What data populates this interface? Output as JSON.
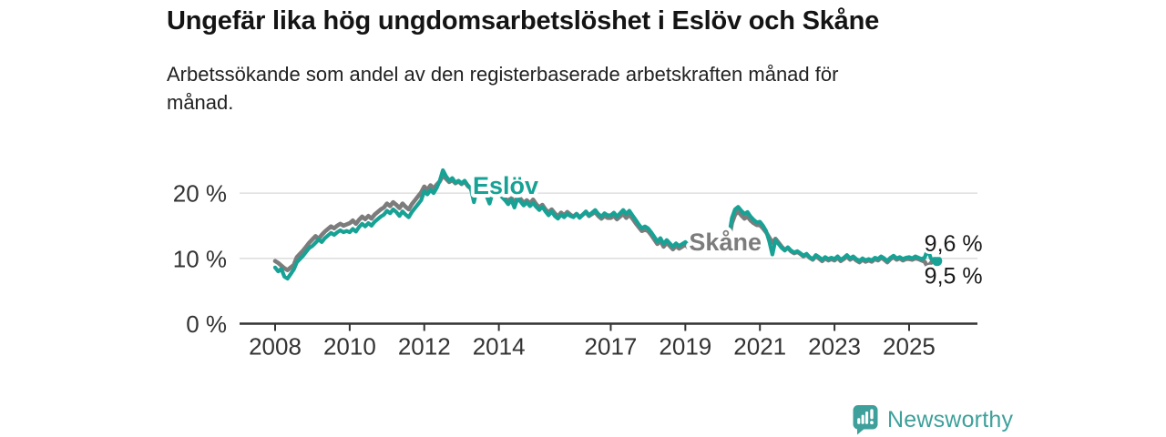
{
  "header": {
    "title": "Ungefär lika hög ungdomsarbetslöshet i Eslöv och Skåne",
    "subtitle_line1": "Arbetssökande som andel av den registerbaserade arbetskraften månad för",
    "subtitle_line2": "månad."
  },
  "branding": {
    "name": "Newsworthy",
    "color": "#3EA09B"
  },
  "chart_data": {
    "type": "line",
    "title": "Ungefär lika hög ungdomsarbetslöshet i Eslöv och Skåne",
    "subtitle": "Arbetssökande som andel av den registerbaserade arbetskraften månad för månad.",
    "unit": "percent",
    "grid": "horizontal",
    "x_start_year": 2008,
    "x_interval": "monthly",
    "x_ticks": [
      2008,
      2010,
      2012,
      2014,
      2017,
      2019,
      2021,
      2023,
      2025
    ],
    "x_tick_labels": [
      "2008",
      "2010",
      "2012",
      "2014",
      "2017",
      "2019",
      "2021",
      "2023",
      "2025"
    ],
    "y_ticks": [
      0,
      10,
      20
    ],
    "y_tick_labels": [
      "0 %",
      "10 %",
      "20 %"
    ],
    "ylim": [
      0,
      25
    ],
    "colors": {
      "grid": "#d9d9d9",
      "axis": "#333333",
      "tick_text": "#333333",
      "value_text": "#1a1a1a"
    },
    "series": [
      {
        "name": "Skåne",
        "color": "#7C7C7C",
        "end_label": "9,5 %",
        "end_label_position": "below",
        "end_dot": false,
        "values": [
          9.6,
          9.3,
          8.9,
          8.5,
          8.2,
          8.6,
          9.0,
          10.2,
          10.7,
          11.2,
          11.8,
          12.4,
          12.9,
          13.4,
          13.0,
          13.6,
          14.1,
          14.5,
          14.9,
          14.6,
          15.0,
          15.3,
          15.0,
          15.2,
          15.4,
          15.8,
          15.3,
          15.9,
          16.4,
          16.0,
          16.5,
          16.1,
          16.7,
          17.1,
          17.5,
          17.8,
          18.4,
          18.0,
          18.6,
          18.2,
          17.7,
          18.4,
          17.9,
          17.5,
          18.3,
          18.9,
          19.5,
          20.1,
          21.0,
          20.5,
          21.2,
          20.7,
          21.3,
          21.8,
          22.7,
          22.2,
          21.7,
          22.0,
          21.5,
          21.8,
          21.4,
          21.8,
          21.1,
          20.7,
          19.3,
          20.9,
          20.5,
          20.1,
          19.8,
          19.2,
          20.2,
          20.5,
          20.1,
          19.7,
          19.2,
          18.7,
          19.4,
          18.2,
          19.6,
          19.1,
          18.5,
          18.9,
          18.4,
          19.0,
          18.3,
          17.8,
          18.2,
          17.5,
          17.0,
          17.5,
          16.9,
          16.4,
          17.0,
          16.6,
          17.1,
          16.7,
          16.4,
          16.8,
          16.3,
          16.7,
          17.1,
          16.5,
          16.8,
          17.1,
          16.5,
          16.1,
          16.5,
          16.2,
          16.2,
          16.5,
          16.0,
          16.4,
          16.8,
          16.2,
          16.7,
          16.1,
          15.4,
          14.8,
          14.2,
          14.4,
          14.2,
          13.6,
          12.9,
          12.2,
          12.7,
          11.8,
          12.4,
          11.9,
          11.4,
          11.9,
          11.5,
          11.8,
          12.1,
          11.6,
          11.2,
          11.6,
          12.1,
          11.5,
          12.5,
          12.1,
          11.7,
          12.2,
          11.9,
          12.1,
          12.2,
          11.9,
          12.8,
          15.4,
          16.7,
          17.2,
          16.6,
          16.1,
          16.4,
          15.8,
          15.4,
          15.1,
          15.1,
          14.6,
          14.0,
          13.2,
          12.4,
          13.0,
          12.4,
          11.8,
          11.3,
          11.6,
          11.1,
          10.8,
          11.0,
          10.7,
          10.3,
          10.6,
          10.1,
          9.8,
          10.3,
          10.0,
          9.6,
          10.0,
          9.7,
          9.9,
          9.7,
          10.1,
          9.6,
          9.9,
          10.3,
          9.8,
          10.1,
          9.7,
          9.4,
          9.8,
          9.5,
          9.7,
          9.5,
          9.9,
          9.7,
          10.1,
          9.8,
          9.4,
          9.9,
          10.2,
          9.8,
          10.0,
          9.7,
          9.9,
          9.9,
          9.8,
          10.0,
          9.9,
          9.7,
          9.5,
          8.7,
          9.3,
          9.9,
          9.5
        ]
      },
      {
        "name": "Eslöv",
        "color": "#17A295",
        "end_label": "9,6 %",
        "end_label_position": "above",
        "end_dot": true,
        "values": [
          8.6,
          8.0,
          8.4,
          7.2,
          6.9,
          7.6,
          8.3,
          9.4,
          9.9,
          10.4,
          11.0,
          11.6,
          11.9,
          12.4,
          12.9,
          12.5,
          13.1,
          13.5,
          13.9,
          13.6,
          14.0,
          14.3,
          14.0,
          14.2,
          14.0,
          14.5,
          14.1,
          14.8,
          15.3,
          14.9,
          15.4,
          15.0,
          15.6,
          16.0,
          16.4,
          16.7,
          17.3,
          16.9,
          17.5,
          17.1,
          16.5,
          17.2,
          16.7,
          16.3,
          17.1,
          17.7,
          18.3,
          18.9,
          20.3,
          19.8,
          20.5,
          20.0,
          20.8,
          21.9,
          23.5,
          22.6,
          21.9,
          22.3,
          21.6,
          21.9,
          21.5,
          21.9,
          21.2,
          20.7,
          18.6,
          20.9,
          20.4,
          20.0,
          19.6,
          18.4,
          20.1,
          20.3,
          19.9,
          19.4,
          18.9,
          18.3,
          19.0,
          17.8,
          19.2,
          18.7,
          18.1,
          18.6,
          18.0,
          18.5,
          17.9,
          17.4,
          17.9,
          17.2,
          16.6,
          17.2,
          16.5,
          16.1,
          16.7,
          16.3,
          16.8,
          16.5,
          16.3,
          16.8,
          16.2,
          16.7,
          17.2,
          16.6,
          17.0,
          17.4,
          16.8,
          16.4,
          16.9,
          16.6,
          16.6,
          17.0,
          16.4,
          16.9,
          17.4,
          16.8,
          17.3,
          16.6,
          15.9,
          15.2,
          14.6,
          14.9,
          14.6,
          14.0,
          13.3,
          12.6,
          13.1,
          12.2,
          12.8,
          12.3,
          11.8,
          12.3,
          11.9,
          12.2,
          12.5,
          12.0,
          11.6,
          12.0,
          12.5,
          11.9,
          13.0,
          12.6,
          12.2,
          12.7,
          12.4,
          12.6,
          12.8,
          12.4,
          13.3,
          16.2,
          17.5,
          17.9,
          17.3,
          16.8,
          17.1,
          16.4,
          15.9,
          15.5,
          15.6,
          15.0,
          14.2,
          12.6,
          10.6,
          12.8,
          12.2,
          11.6,
          11.2,
          11.7,
          11.2,
          10.9,
          11.1,
          10.8,
          10.4,
          10.7,
          10.2,
          9.9,
          10.5,
          10.2,
          9.8,
          10.2,
          9.9,
          10.1,
          9.9,
          10.3,
          9.8,
          10.1,
          10.5,
          10.0,
          10.3,
          9.9,
          9.6,
          10.0,
          9.7,
          9.9,
          9.7,
          10.1,
          9.9,
          10.3,
          10.0,
          9.6,
          10.1,
          10.4,
          10.0,
          10.2,
          9.9,
          10.1,
          10.2,
          10.0,
          10.3,
          10.1,
          9.9,
          10.1,
          11.4,
          10.0,
          9.5,
          9.6
        ]
      }
    ],
    "annotations": [
      {
        "text": "Eslöv",
        "color": "#17A295",
        "x": 2013.3,
        "y": 19.9
      },
      {
        "text": "Skåne",
        "color": "#7C7C7C",
        "x": 2019.1,
        "y": 11.2
      }
    ]
  }
}
